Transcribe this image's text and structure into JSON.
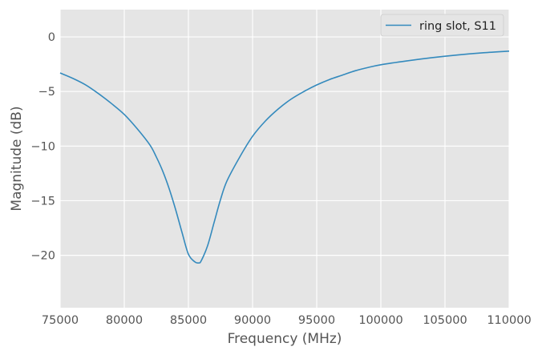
{
  "chart_data": {
    "type": "line",
    "title": "",
    "xlabel": "Frequency (MHz)",
    "ylabel": "Magnitude (dB)",
    "xlim": [
      75000,
      110000
    ],
    "ylim": [
      -24.8,
      2.5
    ],
    "xticks": [
      75000,
      80000,
      85000,
      90000,
      95000,
      100000,
      105000,
      110000
    ],
    "yticks": [
      0,
      -5,
      -10,
      -15,
      -20
    ],
    "ytick_labels": [
      "0",
      "−5",
      "−10",
      "−15",
      "−20"
    ],
    "grid": true,
    "legend_position": "top-right",
    "colors": {
      "background": "#e5e5e5",
      "grid": "#ffffff",
      "series": "#348abd"
    },
    "series": [
      {
        "name": "ring slot, S11",
        "x": [
          75000,
          76000,
          77000,
          78000,
          79000,
          80000,
          81000,
          82000,
          82500,
          83000,
          83500,
          84000,
          84500,
          85000,
          85500,
          85800,
          86000,
          86500,
          87000,
          87500,
          88000,
          89000,
          90000,
          91000,
          92000,
          93000,
          94000,
          95000,
          96000,
          97000,
          98000,
          99000,
          100000,
          102000,
          104000,
          106000,
          108000,
          110000
        ],
        "y": [
          -3.3,
          -3.8,
          -4.4,
          -5.2,
          -6.1,
          -7.1,
          -8.4,
          -9.9,
          -11.0,
          -12.3,
          -13.9,
          -15.8,
          -17.9,
          -19.9,
          -20.6,
          -20.7,
          -20.5,
          -19.1,
          -17.0,
          -14.9,
          -13.2,
          -11.0,
          -9.1,
          -7.7,
          -6.6,
          -5.7,
          -5.0,
          -4.4,
          -3.9,
          -3.5,
          -3.1,
          -2.8,
          -2.55,
          -2.2,
          -1.9,
          -1.65,
          -1.45,
          -1.3
        ]
      }
    ]
  }
}
